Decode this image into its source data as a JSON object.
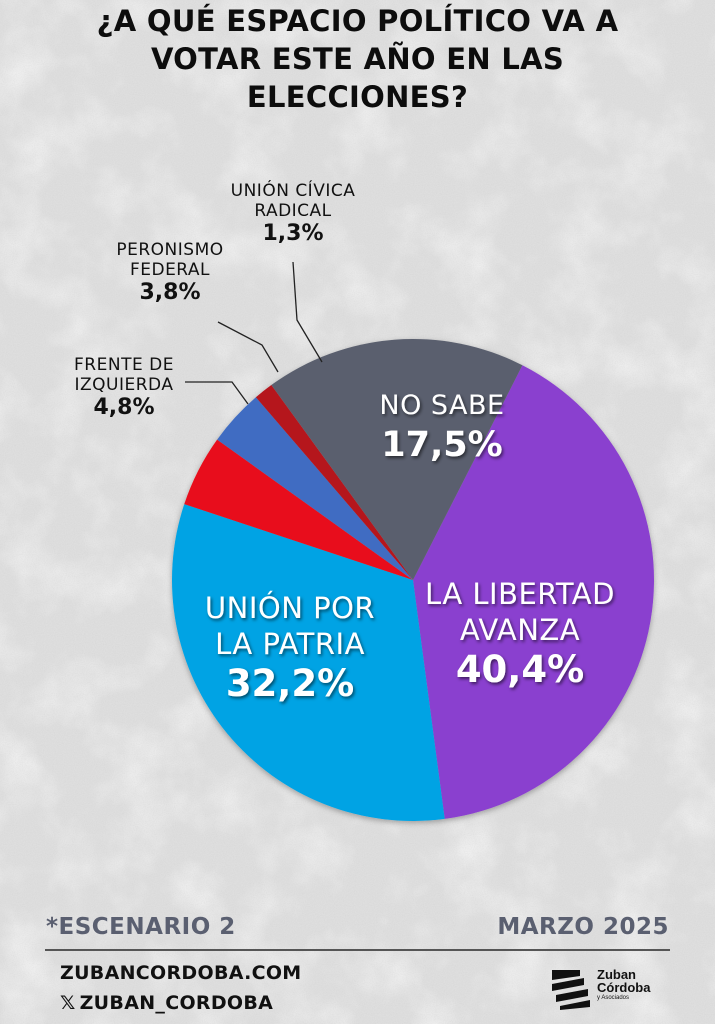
{
  "title_lines": [
    "¿A QUÉ ESPACIO POLÍTICO VA A",
    "VOTAR ESTE AÑO EN LAS",
    "ELECCIONES?"
  ],
  "chart_data": {
    "type": "pie",
    "title": "¿A QUÉ ESPACIO POLÍTICO VA A VOTAR ESTE AÑO EN LAS ELECCIONES?",
    "start_angle_deg": 27,
    "direction": "clockwise",
    "slices": [
      {
        "label": [
          "LA LIBERTAD",
          "AVANZA"
        ],
        "value": 40.4,
        "value_label": "40,4%",
        "color": "#8a3fcf"
      },
      {
        "label": [
          "UNIÓN POR",
          "LA PATRIA"
        ],
        "value": 32.2,
        "value_label": "32,2%",
        "color": "#00a3e4"
      },
      {
        "label": [
          "FRENTE DE",
          "IZQUIERDA"
        ],
        "value": 4.8,
        "value_label": "4,8%",
        "color": "#e8101a"
      },
      {
        "label": [
          "PERONISMO",
          "FEDERAL"
        ],
        "value": 3.8,
        "value_label": "3,8%",
        "color": "#3f6cc2"
      },
      {
        "label": [
          "UNIÓN CÍVICA",
          "RADICAL"
        ],
        "value": 1.3,
        "value_label": "1,3%",
        "color": "#b5121b"
      },
      {
        "label": [
          "NO SABE"
        ],
        "value": 17.5,
        "value_label": "17,5%",
        "color": "#5a5f6e"
      }
    ]
  },
  "footer": {
    "scenario": "*ESCENARIO 2",
    "date": "MARZO 2025",
    "website": "ZUBANCORDOBA.COM",
    "social_icon": "x-icon",
    "social": "ZUBAN_CORDOBA",
    "logo_line1": "Zuban",
    "logo_line2": "Córdoba",
    "logo_line3": "y Asociados"
  }
}
